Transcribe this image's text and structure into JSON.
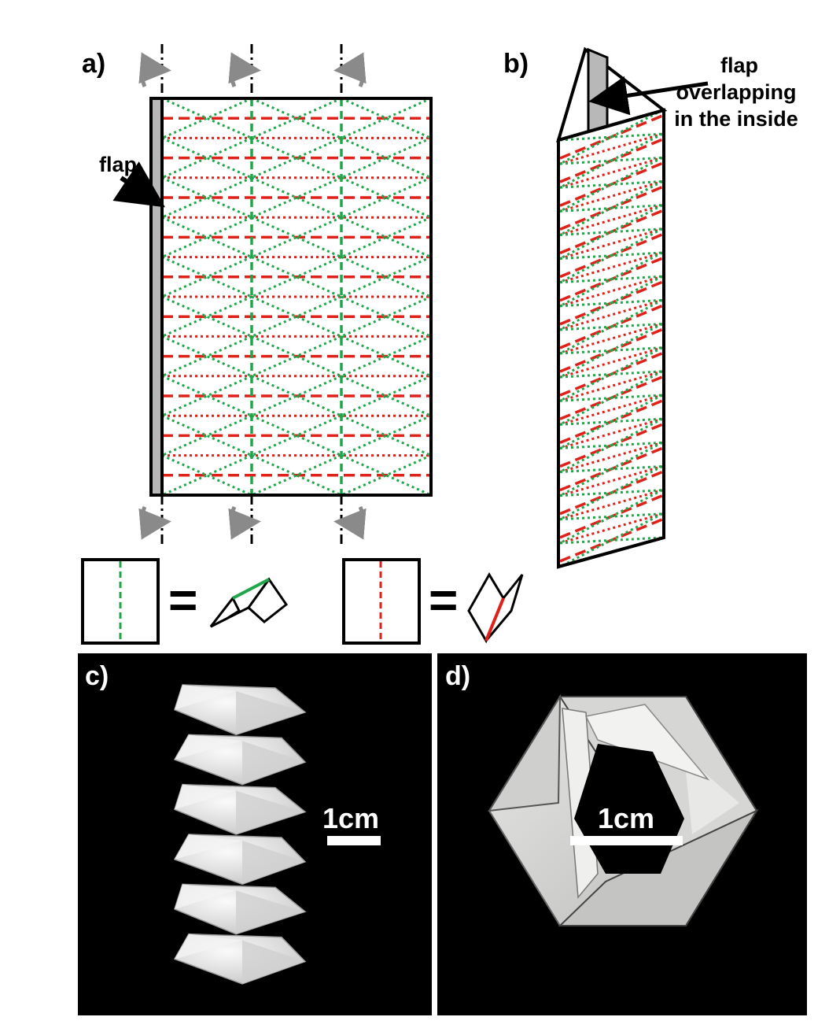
{
  "figure": {
    "panel_a": {
      "label": "a)",
      "flap_label": "flap"
    },
    "panel_b": {
      "label": "b)",
      "annotation_lines": [
        "flap",
        "overlapping",
        "in the inside"
      ]
    },
    "legend": {
      "equals_symbol": "="
    },
    "panel_c": {
      "label": "c)",
      "scale_bar_label": "1cm"
    },
    "panel_d": {
      "label": "d)",
      "scale_bar_label": "1cm"
    }
  },
  "colors": {
    "valley_fold": "#1fa64a",
    "mountain_fold": "#e0211a",
    "flap_fill": "#b8b8b8",
    "outline": "#000000",
    "rotation_arrow": "#8a8a8a",
    "photo_background": "#000000"
  }
}
